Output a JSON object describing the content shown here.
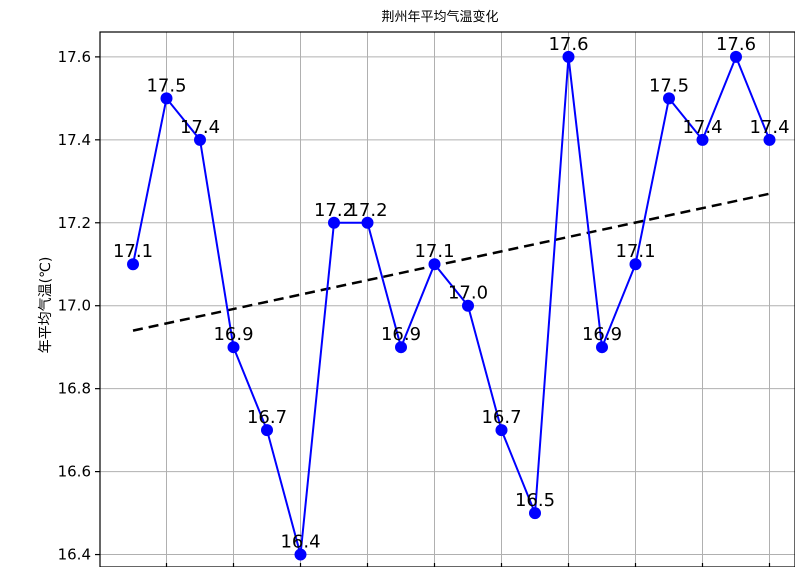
{
  "chart_data": {
    "type": "line",
    "title": "荆州年平均气温变化",
    "ylabel": "年平均气温(℃)",
    "ylim": [
      16.37,
      17.66
    ],
    "yticks": [
      16.4,
      16.6,
      16.8,
      17.0,
      17.2,
      17.4,
      17.6
    ],
    "ytick_labels": [
      "16.4",
      "16.6",
      "16.8",
      "17.0",
      "17.2",
      "17.4",
      "17.6"
    ],
    "grid": true,
    "series": [
      {
        "color": "#0000ff",
        "marker": "circle",
        "values": [
          17.1,
          17.5,
          17.4,
          16.9,
          16.7,
          16.4,
          17.2,
          17.2,
          16.9,
          17.1,
          17.0,
          16.7,
          16.5,
          17.6,
          16.9,
          17.1,
          17.5,
          17.4,
          17.6,
          17.4
        ],
        "labels": [
          "17.1",
          "17.5",
          "17.4",
          "16.9",
          "16.7",
          "16.4",
          "17.2",
          "17.2",
          "16.9",
          "17.1",
          "17.0",
          "16.7",
          "16.5",
          "17.6",
          "16.9",
          "17.1",
          "17.5",
          "17.4",
          "17.6",
          "17.4"
        ]
      }
    ],
    "trendline": {
      "style": "dashed",
      "color": "#000000",
      "start": 16.94,
      "end": 17.27
    }
  }
}
